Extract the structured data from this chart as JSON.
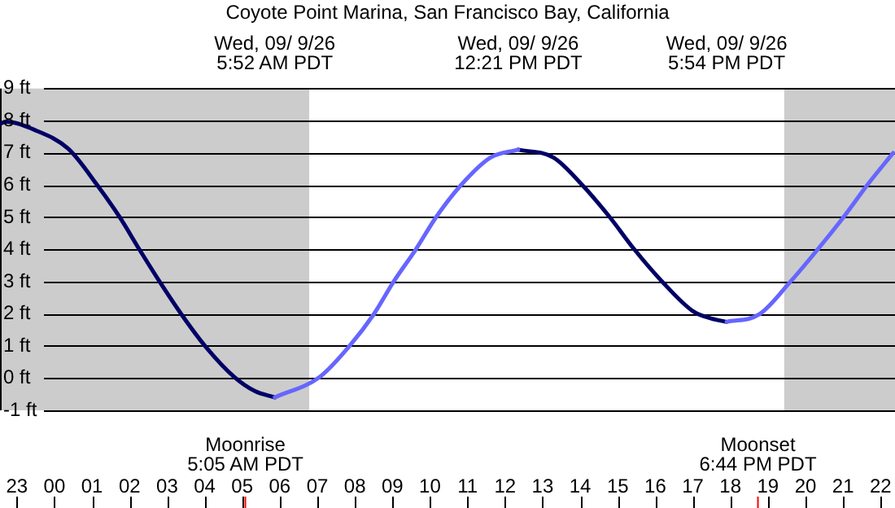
{
  "chart_data": {
    "type": "line",
    "title": "Coyote Point Marina, San Francisco Bay, California",
    "xlim": [
      "--09-08T22:33",
      "--09-09T22:23"
    ],
    "ylim": [
      -1,
      9
    ],
    "xticks": [
      {
        "value": "--09-08T23:00",
        "label": "23"
      },
      {
        "value": "--09-09T00:00",
        "label": "00"
      },
      {
        "value": "--09-09T01:00",
        "label": "01"
      },
      {
        "value": "--09-09T02:00",
        "label": "02"
      },
      {
        "value": "--09-09T03:00",
        "label": "03"
      },
      {
        "value": "--09-09T04:00",
        "label": "04"
      },
      {
        "value": "--09-09T05:00",
        "label": "05"
      },
      {
        "value": "--09-09T06:00",
        "label": "06"
      },
      {
        "value": "--09-09T07:00",
        "label": "07"
      },
      {
        "value": "--09-09T08:00",
        "label": "08"
      },
      {
        "value": "--09-09T09:00",
        "label": "09"
      },
      {
        "value": "--09-09T10:00",
        "label": "10"
      },
      {
        "value": "--09-09T11:00",
        "label": "11"
      },
      {
        "value": "--09-09T12:00",
        "label": "12"
      },
      {
        "value": "--09-09T13:00",
        "label": "13"
      },
      {
        "value": "--09-09T14:00",
        "label": "14"
      },
      {
        "value": "--09-09T15:00",
        "label": "15"
      },
      {
        "value": "--09-09T16:00",
        "label": "16"
      },
      {
        "value": "--09-09T17:00",
        "label": "17"
      },
      {
        "value": "--09-09T18:00",
        "label": "18"
      },
      {
        "value": "--09-09T19:00",
        "label": "19"
      },
      {
        "value": "--09-09T20:00",
        "label": "20"
      },
      {
        "value": "--09-09T21:00",
        "label": "21"
      },
      {
        "value": "--09-09T22:00",
        "label": "22"
      }
    ],
    "x2lim": [
      "--09-08T22:33",
      "--09-09T22:23"
    ],
    "x2ticks": [
      {
        "value": "--09-09T05:52",
        "label": "Wed, 09/ 9/26\n5:52 AM PDT"
      },
      {
        "value": "--09-09T12:21",
        "label": "Wed, 09/ 9/26\n12:21 PM PDT"
      },
      {
        "value": "--09-09T17:54",
        "label": "Wed, 09/ 9/26\n5:54 PM PDT"
      }
    ],
    "yticks": [
      {
        "value": -1,
        "label": "-1 ft"
      },
      {
        "value": 0,
        "label": "0 ft"
      },
      {
        "value": 1,
        "label": "1 ft"
      },
      {
        "value": 2,
        "label": "2 ft"
      },
      {
        "value": 3,
        "label": "3 ft"
      },
      {
        "value": 4,
        "label": "4 ft"
      },
      {
        "value": 5,
        "label": "5 ft"
      },
      {
        "value": 6,
        "label": "6 ft"
      },
      {
        "value": 7,
        "label": "7 ft"
      },
      {
        "value": 8,
        "label": "8 ft"
      },
      {
        "value": 9,
        "label": "9 ft"
      }
    ],
    "grid": "y",
    "legend": false,
    "marker": "none",
    "line_style": "solid",
    "series": [
      {
        "color": "#6666ff",
        "x": [
          "--09-09T05:52",
          "--09-09T07:04",
          "--09-09T07:51",
          "--09-09T08:30",
          "--09-09T09:02",
          "--09-09T09:37",
          "--09-09T10:10",
          "--09-09T10:50",
          "--09-09T11:37",
          "--09-09T12:21",
          "--09-09T15:00",
          "--09-09T17:54",
          "--09-09T18:46",
          "--09-09T19:36",
          "--09-09T20:19",
          "--09-09T21:01",
          "--09-09T21:39",
          "--09-09T22:20"
        ],
        "values": [
          -0.6,
          0.04,
          0.99,
          1.98,
          3.0,
          3.99,
          5.01,
          6.01,
          6.86,
          7.1,
          null,
          1.75,
          1.98,
          3.0,
          3.99,
          5.01,
          6.01,
          7.0
        ]
      },
      {
        "color": "#000066",
        "x": [
          "--09-08T22:33",
          "--09-08T22:42",
          "--09-08T23:30",
          "--09-09T00:22",
          "--09-09T01:08",
          "--09-09T01:44",
          "--09-09T02:16",
          "--09-09T02:48",
          "--09-09T03:23",
          "--09-09T04:01",
          "--09-09T04:47",
          "--09-09T05:20",
          "--09-09T05:52",
          "--09-09T09:00",
          "--09-09T12:21",
          "--09-09T13:17",
          "--09-09T14:03",
          "--09-09T14:47",
          "--09-09T15:27",
          "--09-09T16:11",
          "--09-09T17:01",
          "--09-09T17:30",
          "--09-09T17:54"
        ],
        "values": [
          7.9,
          7.97,
          7.7,
          7.13,
          6.01,
          5.01,
          3.99,
          3.0,
          1.98,
          0.99,
          0.04,
          -0.4,
          -0.6,
          null,
          7.1,
          6.86,
          6.01,
          5.01,
          3.99,
          3.0,
          2.07,
          1.85,
          1.75
        ]
      }
    ],
    "bands": [
      {
        "axis": "x",
        "from": "--09-08T22:33",
        "to": "--09-09T06:47",
        "color": "#cccccc"
      },
      {
        "axis": "x",
        "from": "--09-09T19:26",
        "to": "--09-09T22:23",
        "color": "#cccccc"
      }
    ],
    "ref_lines": [
      {
        "axis": "x",
        "value": "--09-09T05:05",
        "label": "Moonrise\n5:05 AM PDT",
        "color": "#ff0000"
      },
      {
        "axis": "x",
        "value": "--09-09T18:44",
        "label": "Moonset\n6:44 PM PDT",
        "color": "#ff0000"
      }
    ]
  }
}
